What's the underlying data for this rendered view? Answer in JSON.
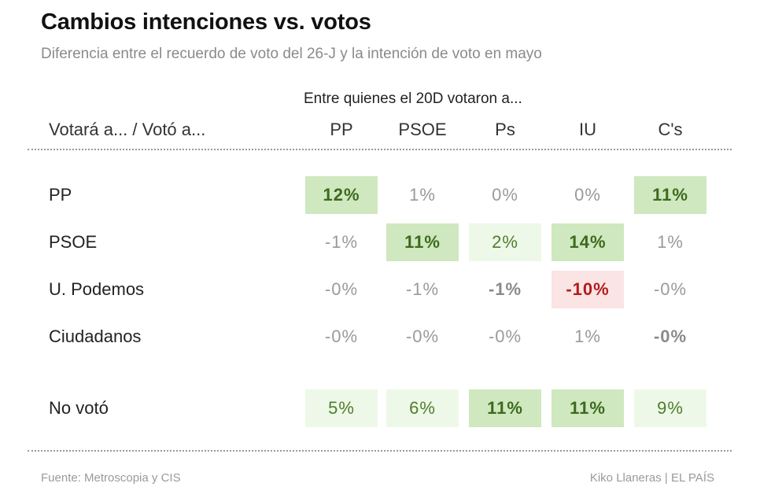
{
  "chart_data": {
    "type": "table",
    "title": "Cambios intenciones vs. votos",
    "subtitle": "Diferencia entre el recuerdo de voto del 26-J  y la intención de voto en mayo",
    "column_group_label": "Entre quienes el 20D votaron a...",
    "corner_label": "Votará a... / Votó a...",
    "columns": [
      "PP",
      "PSOE",
      "Ps",
      "IU",
      "C's"
    ],
    "rows": [
      {
        "label": "PP",
        "cells": [
          {
            "text": "12%",
            "value": 12,
            "style": "strong"
          },
          {
            "text": "1%",
            "value": 1,
            "style": "none"
          },
          {
            "text": "0%",
            "value": 0,
            "style": "none"
          },
          {
            "text": "0%",
            "value": 0,
            "style": "none"
          },
          {
            "text": "11%",
            "value": 11,
            "style": "strong"
          }
        ]
      },
      {
        "label": "PSOE",
        "cells": [
          {
            "text": "-1%",
            "value": -1,
            "style": "none"
          },
          {
            "text": "11%",
            "value": 11,
            "style": "strong"
          },
          {
            "text": "2%",
            "value": 2,
            "style": "light"
          },
          {
            "text": "14%",
            "value": 14,
            "style": "medium"
          },
          {
            "text": "1%",
            "value": 1,
            "style": "none"
          }
        ]
      },
      {
        "label": "U. Podemos",
        "cells": [
          {
            "text": "-0%",
            "value": 0,
            "style": "none"
          },
          {
            "text": "-1%",
            "value": -1,
            "style": "none"
          },
          {
            "text": "-1%",
            "value": -1,
            "style": "bold-grey"
          },
          {
            "text": "-10%",
            "value": -10,
            "style": "negative"
          },
          {
            "text": "-0%",
            "value": 0,
            "style": "none"
          }
        ]
      },
      {
        "label": "Ciudadanos",
        "cells": [
          {
            "text": "-0%",
            "value": 0,
            "style": "none"
          },
          {
            "text": "-0%",
            "value": 0,
            "style": "none"
          },
          {
            "text": "-0%",
            "value": 0,
            "style": "none"
          },
          {
            "text": "1%",
            "value": 1,
            "style": "none"
          },
          {
            "text": "-0%",
            "value": 0,
            "style": "bold-grey"
          }
        ]
      },
      {
        "label": "No votó",
        "cells": [
          {
            "text": "5%",
            "value": 5,
            "style": "light"
          },
          {
            "text": "6%",
            "value": 6,
            "style": "light"
          },
          {
            "text": "11%",
            "value": 11,
            "style": "strong"
          },
          {
            "text": "11%",
            "value": 11,
            "style": "strong"
          },
          {
            "text": "9%",
            "value": 9,
            "style": "light"
          }
        ]
      }
    ]
  },
  "footer": {
    "source": "Fuente: Metroscopia y CIS",
    "credit": "Kiko Llaneras  |  EL PAÍS"
  },
  "colors": {
    "strong_fill": "#cfe8bf",
    "light_fill": "#eef8e8",
    "negative_fill": "#fbe4e4",
    "negative_text": "#b21c1c",
    "positive_text": "#3d6a1e",
    "neutral_text": "#9a9a9a"
  }
}
